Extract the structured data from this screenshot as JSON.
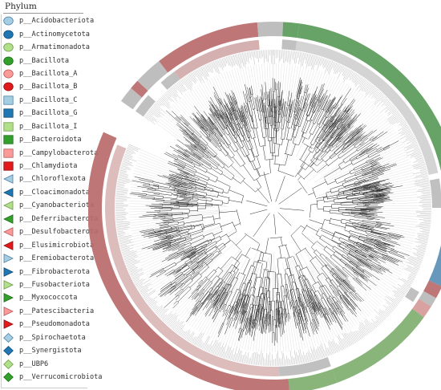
{
  "legend": {
    "title": "Phylum",
    "items": [
      {
        "label": "p__Acidobacteriota",
        "shape": "ellipse",
        "color": "#a6cee3",
        "stroke": "#4a7fa8"
      },
      {
        "label": "p__Actinomycetota",
        "shape": "ellipse",
        "color": "#1f78b4",
        "stroke": "#124a72"
      },
      {
        "label": "p__Armatimonadota",
        "shape": "ellipse",
        "color": "#b2df8a",
        "stroke": "#6a9a45"
      },
      {
        "label": "p__Bacillota",
        "shape": "ellipse",
        "color": "#33a02c",
        "stroke": "#1c6a17"
      },
      {
        "label": "p__Bacillota_A",
        "shape": "ellipse",
        "color": "#fb9a99",
        "stroke": "#b55a59"
      },
      {
        "label": "p__Bacillota_B",
        "shape": "ellipse",
        "color": "#e31a1c",
        "stroke": "#8f0e10"
      },
      {
        "label": "p__Bacillota_C",
        "shape": "square",
        "color": "#a6cee3",
        "stroke": "#4a7fa8"
      },
      {
        "label": "p__Bacillota_G",
        "shape": "square",
        "color": "#1f78b4",
        "stroke": "#124a72"
      },
      {
        "label": "p__Bacillota_I",
        "shape": "square",
        "color": "#b2df8a",
        "stroke": "#6a9a45"
      },
      {
        "label": "p__Bacteroidota",
        "shape": "square",
        "color": "#33a02c",
        "stroke": "#1c6a17"
      },
      {
        "label": "p__Campylobacterota",
        "shape": "square",
        "color": "#fb9a99",
        "stroke": "#b55a59"
      },
      {
        "label": "p__Chlamydiota",
        "shape": "square",
        "color": "#e31a1c",
        "stroke": "#8f0e10"
      },
      {
        "label": "p__Chloroflexota",
        "shape": "triangle",
        "color": "#a6cee3",
        "stroke": "#4a7fa8"
      },
      {
        "label": "p__Cloacimonadota",
        "shape": "triangle",
        "color": "#1f78b4",
        "stroke": "#124a72"
      },
      {
        "label": "p__Cyanobacteriota",
        "shape": "triangle",
        "color": "#b2df8a",
        "stroke": "#6a9a45"
      },
      {
        "label": "p__Deferribacterota",
        "shape": "triangle",
        "color": "#33a02c",
        "stroke": "#1c6a17"
      },
      {
        "label": "p__Desulfobacterota",
        "shape": "triangle",
        "color": "#fb9a99",
        "stroke": "#b55a59"
      },
      {
        "label": "p__Elusimicrobiota",
        "shape": "triangle",
        "color": "#e31a1c",
        "stroke": "#8f0e10"
      },
      {
        "label": "p__Eremiobacterota",
        "shape": "play",
        "color": "#a6cee3",
        "stroke": "#4a7fa8"
      },
      {
        "label": "p__Fibrobacterota",
        "shape": "play",
        "color": "#1f78b4",
        "stroke": "#124a72"
      },
      {
        "label": "p__Fusobacteriota",
        "shape": "play",
        "color": "#b2df8a",
        "stroke": "#6a9a45"
      },
      {
        "label": "p__Myxococcota",
        "shape": "play",
        "color": "#33a02c",
        "stroke": "#1c6a17"
      },
      {
        "label": "p__Patescibacteria",
        "shape": "play",
        "color": "#fb9a99",
        "stroke": "#b55a59"
      },
      {
        "label": "p__Pseudomonadota",
        "shape": "play",
        "color": "#e31a1c",
        "stroke": "#8f0e10"
      },
      {
        "label": "p__Spirochaetota",
        "shape": "diamond",
        "color": "#a6cee3",
        "stroke": "#4a7fa8"
      },
      {
        "label": "p__Synergistota",
        "shape": "diamond",
        "color": "#1f78b4",
        "stroke": "#124a72"
      },
      {
        "label": "p__UBP6",
        "shape": "diamond",
        "color": "#b2df8a",
        "stroke": "#6a9a45"
      },
      {
        "label": "p__Verrucomicrobiota",
        "shape": "diamond",
        "color": "#33a02c",
        "stroke": "#1c6a17"
      }
    ]
  },
  "ring_colors": {
    "bacillota": "#5a9a5a",
    "actinomycetota": "#5b8fb5",
    "bacteroidota": "#7fae6f",
    "pseudomonadota": "#b86a6a",
    "patescibacteria": "#d49a98",
    "gray": "#b9b9b9"
  }
}
